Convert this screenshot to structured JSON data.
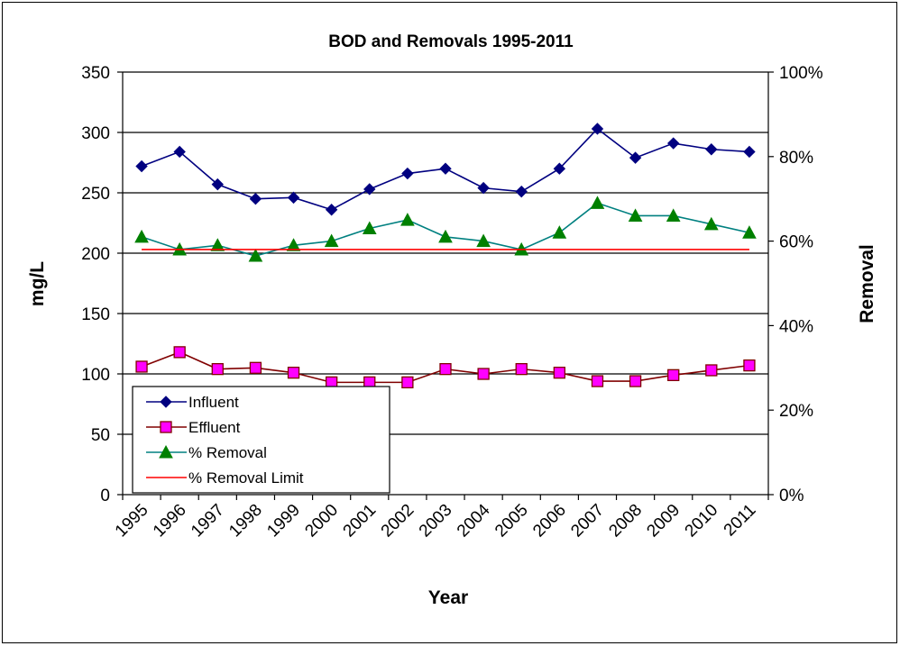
{
  "chart_data": {
    "type": "line",
    "title": "BOD and Removals 1995-2011",
    "xlabel": "Year",
    "ylabel_left": "mg/L",
    "ylabel_right": "Removal",
    "categories": [
      "1995",
      "1996",
      "1997",
      "1998",
      "1999",
      "2000",
      "2001",
      "2002",
      "2003",
      "2004",
      "2005",
      "2006",
      "2007",
      "2008",
      "2009",
      "2010",
      "2011"
    ],
    "ylim_left": [
      0,
      350
    ],
    "yticks_left": [
      "0",
      "50",
      "100",
      "150",
      "200",
      "250",
      "300",
      "350"
    ],
    "ylim_right": [
      0,
      1
    ],
    "yticks_right": [
      "0%",
      "20%",
      "40%",
      "60%",
      "80%",
      "100%"
    ],
    "grid": true,
    "legend_position": "bottom-left",
    "series": [
      {
        "name": "Influent",
        "axis": "left",
        "color": "#000080",
        "marker": "diamond",
        "values": [
          272,
          284,
          257,
          245,
          246,
          236,
          253,
          266,
          270,
          254,
          251,
          270,
          303,
          279,
          291,
          286,
          284
        ]
      },
      {
        "name": "Effluent",
        "axis": "left",
        "color": "#800000",
        "marker": "square",
        "marker_fill": "#ff00ff",
        "values": [
          106,
          118,
          104,
          105,
          101,
          93,
          93,
          93,
          104,
          100,
          104,
          101,
          94,
          94,
          99,
          103,
          107
        ]
      },
      {
        "name": "% Removal",
        "axis": "right",
        "color": "#008080",
        "marker": "triangle",
        "marker_fill": "#008000",
        "values": [
          0.61,
          0.58,
          0.59,
          0.565,
          0.59,
          0.6,
          0.63,
          0.65,
          0.61,
          0.6,
          0.58,
          0.62,
          0.69,
          0.66,
          0.66,
          0.64,
          0.62
        ]
      },
      {
        "name": "% Removal Limit",
        "axis": "right",
        "color": "#ff0000",
        "marker": "none",
        "values": [
          0.58,
          0.58,
          0.58,
          0.58,
          0.58,
          0.58,
          0.58,
          0.58,
          0.58,
          0.58,
          0.58,
          0.58,
          0.58,
          0.58,
          0.58,
          0.58,
          0.58
        ]
      }
    ]
  }
}
